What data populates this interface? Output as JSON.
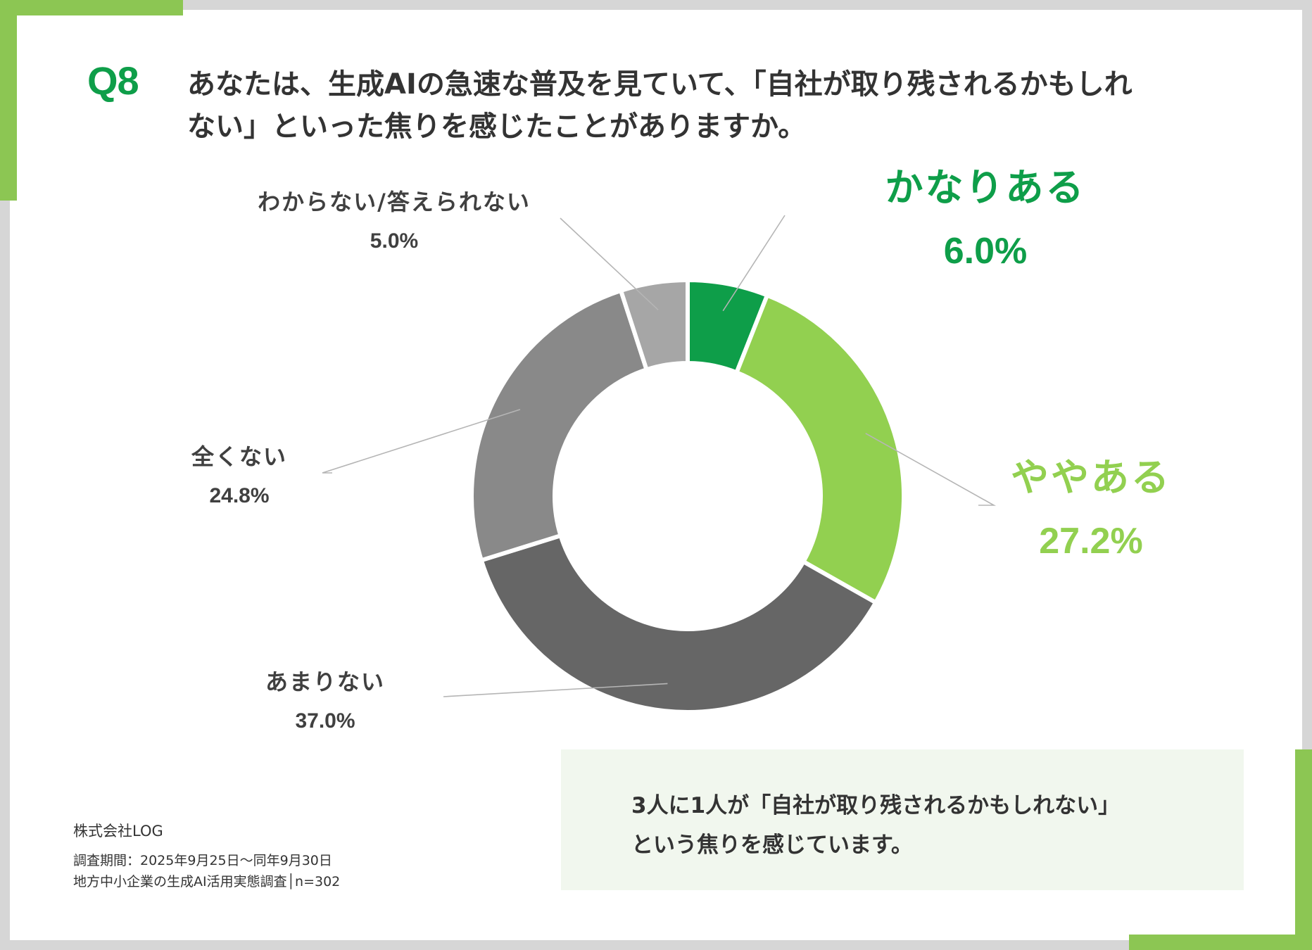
{
  "question": {
    "number": "Q8",
    "line1": "あなたは、生成AIの急速な普及を見ていて、「自社が取り残されるかもしれ",
    "line2": "ない」といった焦りを感じたことがありますか。"
  },
  "colors": {
    "dark_green": "#0e9e49",
    "light_green": "#92d050",
    "accent_green": "#8cc653",
    "gray_dark": "#666666",
    "gray_mid": "#898989",
    "gray_light": "#a6a6a6"
  },
  "chart_data": {
    "type": "pie",
    "donut": true,
    "title": "",
    "unit": "%",
    "categories": [
      "かなりある",
      "ややある",
      "あまりない",
      "全くない",
      "わからない/答えられない"
    ],
    "values": [
      6.0,
      27.2,
      37.0,
      24.8,
      5.0
    ],
    "value_labels": [
      "6.0%",
      "27.2%",
      "37.0%",
      "24.8%",
      "5.0%"
    ],
    "colors": [
      "#0e9e49",
      "#92d050",
      "#666666",
      "#898989",
      "#a6a6a6"
    ],
    "start": "12 o'clock",
    "direction": "clockwise"
  },
  "summary": {
    "line1": "3人に1人が「自社が取り残されるかもしれない」",
    "line2": "という焦りを感じています。"
  },
  "source": {
    "company": "株式会社LOG",
    "period": "調査期間：2025年9月25日～同年9月30日",
    "survey": "地方中小企業の生成AI活用実態調査│n=302"
  }
}
